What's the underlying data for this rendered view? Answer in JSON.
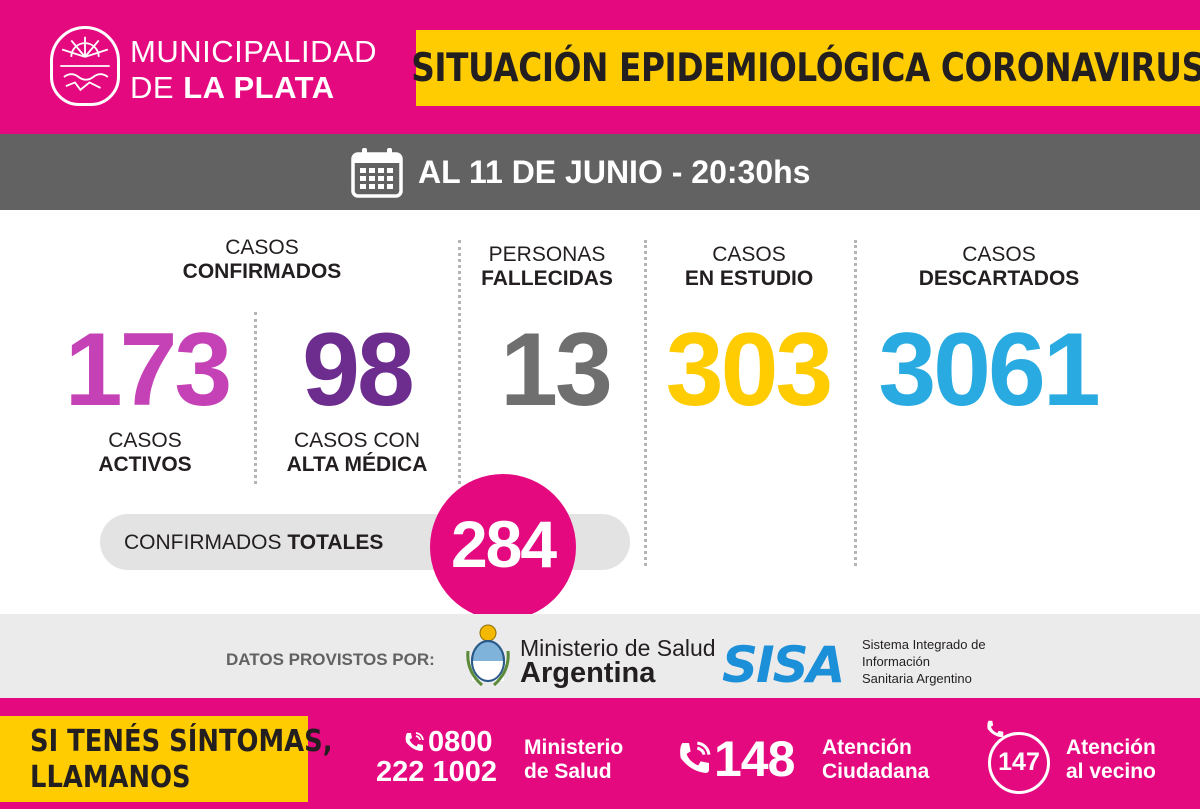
{
  "header": {
    "muni_line1": "MUNICIPALIDAD",
    "muni_line2_a": "DE ",
    "muni_line2_b": "LA PLATA",
    "title": "SITUACIÓN EPIDEMIOLÓGICA CORONAVIRUS",
    "logo_icon": "city-seal-icon"
  },
  "date_bar": {
    "text": "AL 11 DE JUNIO - 20:30hs",
    "icon": "calendar-icon"
  },
  "stats": {
    "confirmados_l1": "CASOS",
    "confirmados_l2": "CONFIRMADOS",
    "activos_value": "173",
    "activos_l1": "CASOS",
    "activos_l2": "ACTIVOS",
    "alta_value": "98",
    "alta_l1": "CASOS CON",
    "alta_l2": "ALTA MÉDICA",
    "fallecidas_l1": "PERSONAS",
    "fallecidas_l2": "FALLECIDAS",
    "fallecidas_value": "13",
    "estudio_l1": "CASOS",
    "estudio_l2": "EN ESTUDIO",
    "estudio_value": "303",
    "descartados_l1": "CASOS",
    "descartados_l2": "DESCARTADOS",
    "descartados_value": "3061"
  },
  "totals": {
    "label_a": "CONFIRMADOS ",
    "label_b": "TOTALES",
    "value": "284"
  },
  "sources": {
    "label": "DATOS PROVISTOS POR:",
    "ministerio_l1": "Ministerio de Salud",
    "ministerio_l2": "Argentina",
    "ministerio_icon": "argentina-coat-of-arms-icon",
    "sisa_logo": "SISA",
    "sisa_d1": "Sistema Integrado de",
    "sisa_d2": "Información",
    "sisa_d3": "Sanitaria Argentino"
  },
  "footer": {
    "cta_l1": "SI TENÉS SÍNTOMAS,",
    "cta_l2": "LLAMANOS",
    "phone1_l1": "0800",
    "phone1_l2": "222 1002",
    "phone1_d1": "Ministerio",
    "phone1_d2": "de Salud",
    "phone2": "148",
    "phone2_d1": "Atención",
    "phone2_d2": "Ciudadana",
    "phone3": "147",
    "phone3_d1": "Atención",
    "phone3_d2": "al vecino",
    "phone_icon": "phone-icon"
  },
  "colors": {
    "magenta": "#e5097f",
    "yellow": "#fecc00",
    "gray": "#626262",
    "activos": "#c541b6",
    "alta": "#6d2d8f",
    "fallecidas": "#6f6f6f",
    "estudio": "#fecc00",
    "descartados": "#29abe2"
  }
}
